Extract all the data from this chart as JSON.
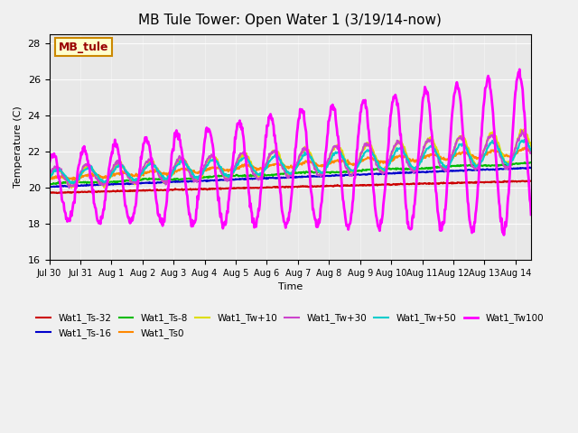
{
  "title": "MB Tule Tower: Open Water 1 (3/19/14-now)",
  "xlabel": "Time",
  "ylabel": "Temperature (C)",
  "ylim": [
    16,
    28.5
  ],
  "background_color": "#f0f0f0",
  "plot_bg_color": "#e8e8e8",
  "annotation_text": "MB_tule",
  "annotation_bg": "#ffffcc",
  "annotation_border": "#cc8800",
  "annotation_text_color": "#990000",
  "series": {
    "Wat1_Ts-32": {
      "color": "#cc0000",
      "lw": 1.5
    },
    "Wat1_Ts-16": {
      "color": "#0000cc",
      "lw": 1.5
    },
    "Wat1_Ts-8": {
      "color": "#00bb00",
      "lw": 1.5
    },
    "Wat1_Ts0": {
      "color": "#ff8800",
      "lw": 1.5
    },
    "Wat1_Tw+10": {
      "color": "#dddd00",
      "lw": 1.5
    },
    "Wat1_Tw+30": {
      "color": "#cc44cc",
      "lw": 1.5
    },
    "Wat1_Tw+50": {
      "color": "#00cccc",
      "lw": 1.5
    },
    "Wat1_Tw100": {
      "color": "#ff00ff",
      "lw": 2.0
    }
  },
  "xtick_positions": [
    0,
    1,
    2,
    3,
    4,
    5,
    6,
    7,
    8,
    9,
    10,
    11,
    12,
    13,
    14,
    15
  ],
  "xtick_labels": [
    "Jul 30",
    "Jul 31",
    "Aug 1",
    "Aug 2",
    "Aug 3",
    "Aug 4",
    "Aug 5",
    "Aug 6",
    "Aug 7",
    "Aug 8",
    "Aug 9",
    "Aug 10",
    "Aug 11",
    "Aug 12",
    "Aug 13",
    "Aug 14"
  ],
  "ytick_labels": [
    16,
    18,
    20,
    22,
    24,
    26,
    28
  ]
}
